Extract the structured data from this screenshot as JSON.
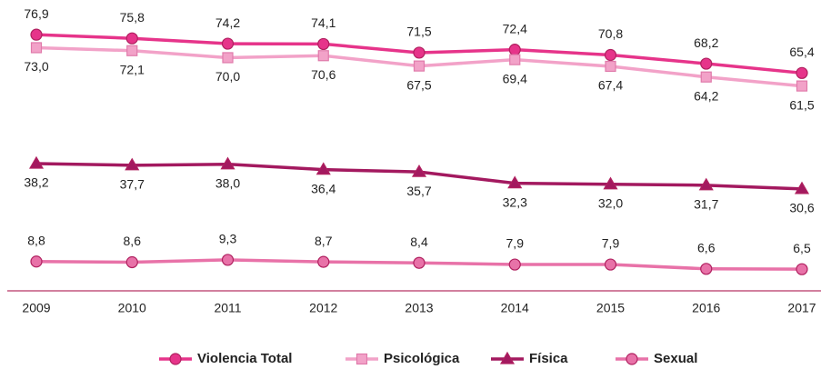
{
  "chart_data": {
    "type": "line",
    "categories": [
      "2009",
      "2010",
      "2011",
      "2012",
      "2013",
      "2014",
      "2015",
      "2016",
      "2017"
    ],
    "ylim": [
      0,
      80
    ],
    "series": [
      {
        "name": "Violencia Total",
        "color": "#e6348a",
        "marker": "circle",
        "values": [
          76.9,
          75.8,
          74.2,
          74.1,
          71.5,
          72.4,
          70.8,
          68.2,
          65.4
        ],
        "value_labels": [
          "76,9",
          "75,8",
          "74,2",
          "74,1",
          "71,5",
          "72,4",
          "70,8",
          "68,2",
          "65,4"
        ]
      },
      {
        "name": "Psicológica",
        "color": "#f2a2c8",
        "marker": "square",
        "values": [
          73.0,
          72.1,
          70.0,
          70.6,
          67.5,
          69.4,
          67.4,
          64.2,
          61.5
        ],
        "value_labels": [
          "73,0",
          "72,1",
          "70,0",
          "70,6",
          "67,5",
          "69,4",
          "67,4",
          "64,2",
          "61,5"
        ]
      },
      {
        "name": "Física",
        "color": "#a3195f",
        "marker": "triangle",
        "values": [
          38.2,
          37.7,
          38.0,
          36.4,
          35.7,
          32.3,
          32.0,
          31.7,
          30.6
        ],
        "value_labels": [
          "38,2",
          "37,7",
          "38,0",
          "36,4",
          "35,7",
          "32,3",
          "32,0",
          "31,7",
          "30,6"
        ]
      },
      {
        "name": "Sexual",
        "color": "#e872a8",
        "marker": "circle",
        "values": [
          8.8,
          8.6,
          9.3,
          8.7,
          8.4,
          7.9,
          7.9,
          6.6,
          6.5
        ],
        "value_labels": [
          "8,8",
          "8,6",
          "9,3",
          "8,7",
          "8,4",
          "7,9",
          "7,9",
          "6,6",
          "6,5"
        ]
      }
    ]
  }
}
